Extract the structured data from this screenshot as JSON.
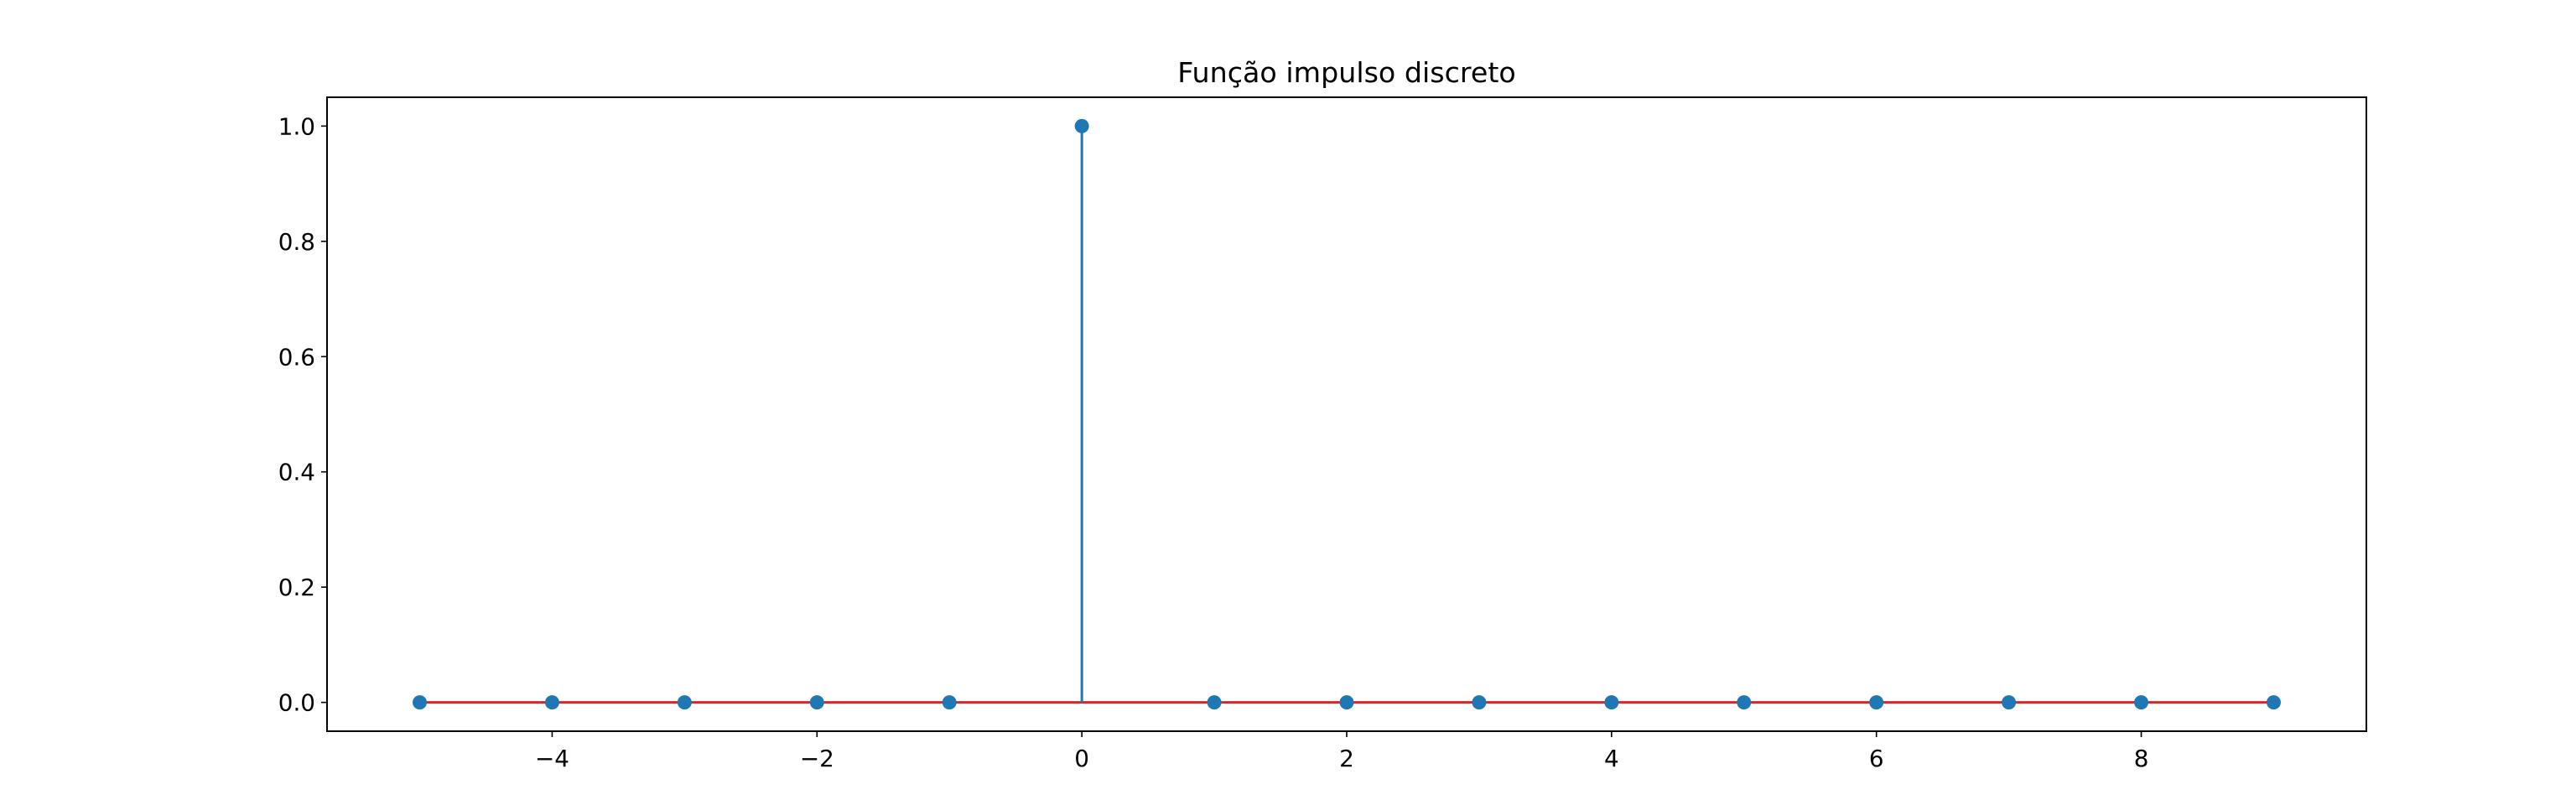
{
  "chart_data": {
    "type": "stem",
    "title": "Função impulso discreto",
    "xlabel": "",
    "ylabel": "",
    "x": [
      -5,
      -4,
      -3,
      -2,
      -1,
      0,
      1,
      2,
      3,
      4,
      5,
      6,
      7,
      8,
      9
    ],
    "y": [
      0,
      0,
      0,
      0,
      0,
      1,
      0,
      0,
      0,
      0,
      0,
      0,
      0,
      0,
      0
    ],
    "xlim": [
      -5.7,
      9.7
    ],
    "ylim": [
      -0.05,
      1.05
    ],
    "xticks": [
      -4,
      -2,
      0,
      2,
      4,
      6,
      8
    ],
    "xtick_labels": [
      "−4",
      "−2",
      "0",
      "2",
      "4",
      "6",
      "8"
    ],
    "yticks": [
      0.0,
      0.2,
      0.4,
      0.6,
      0.8,
      1.0
    ],
    "ytick_labels": [
      "0.0",
      "0.2",
      "0.4",
      "0.6",
      "0.8",
      "1.0"
    ],
    "grid": false,
    "colors": {
      "marker": "#1f77b4",
      "stem": "#1f77b4",
      "baseline": "#d62728"
    }
  }
}
